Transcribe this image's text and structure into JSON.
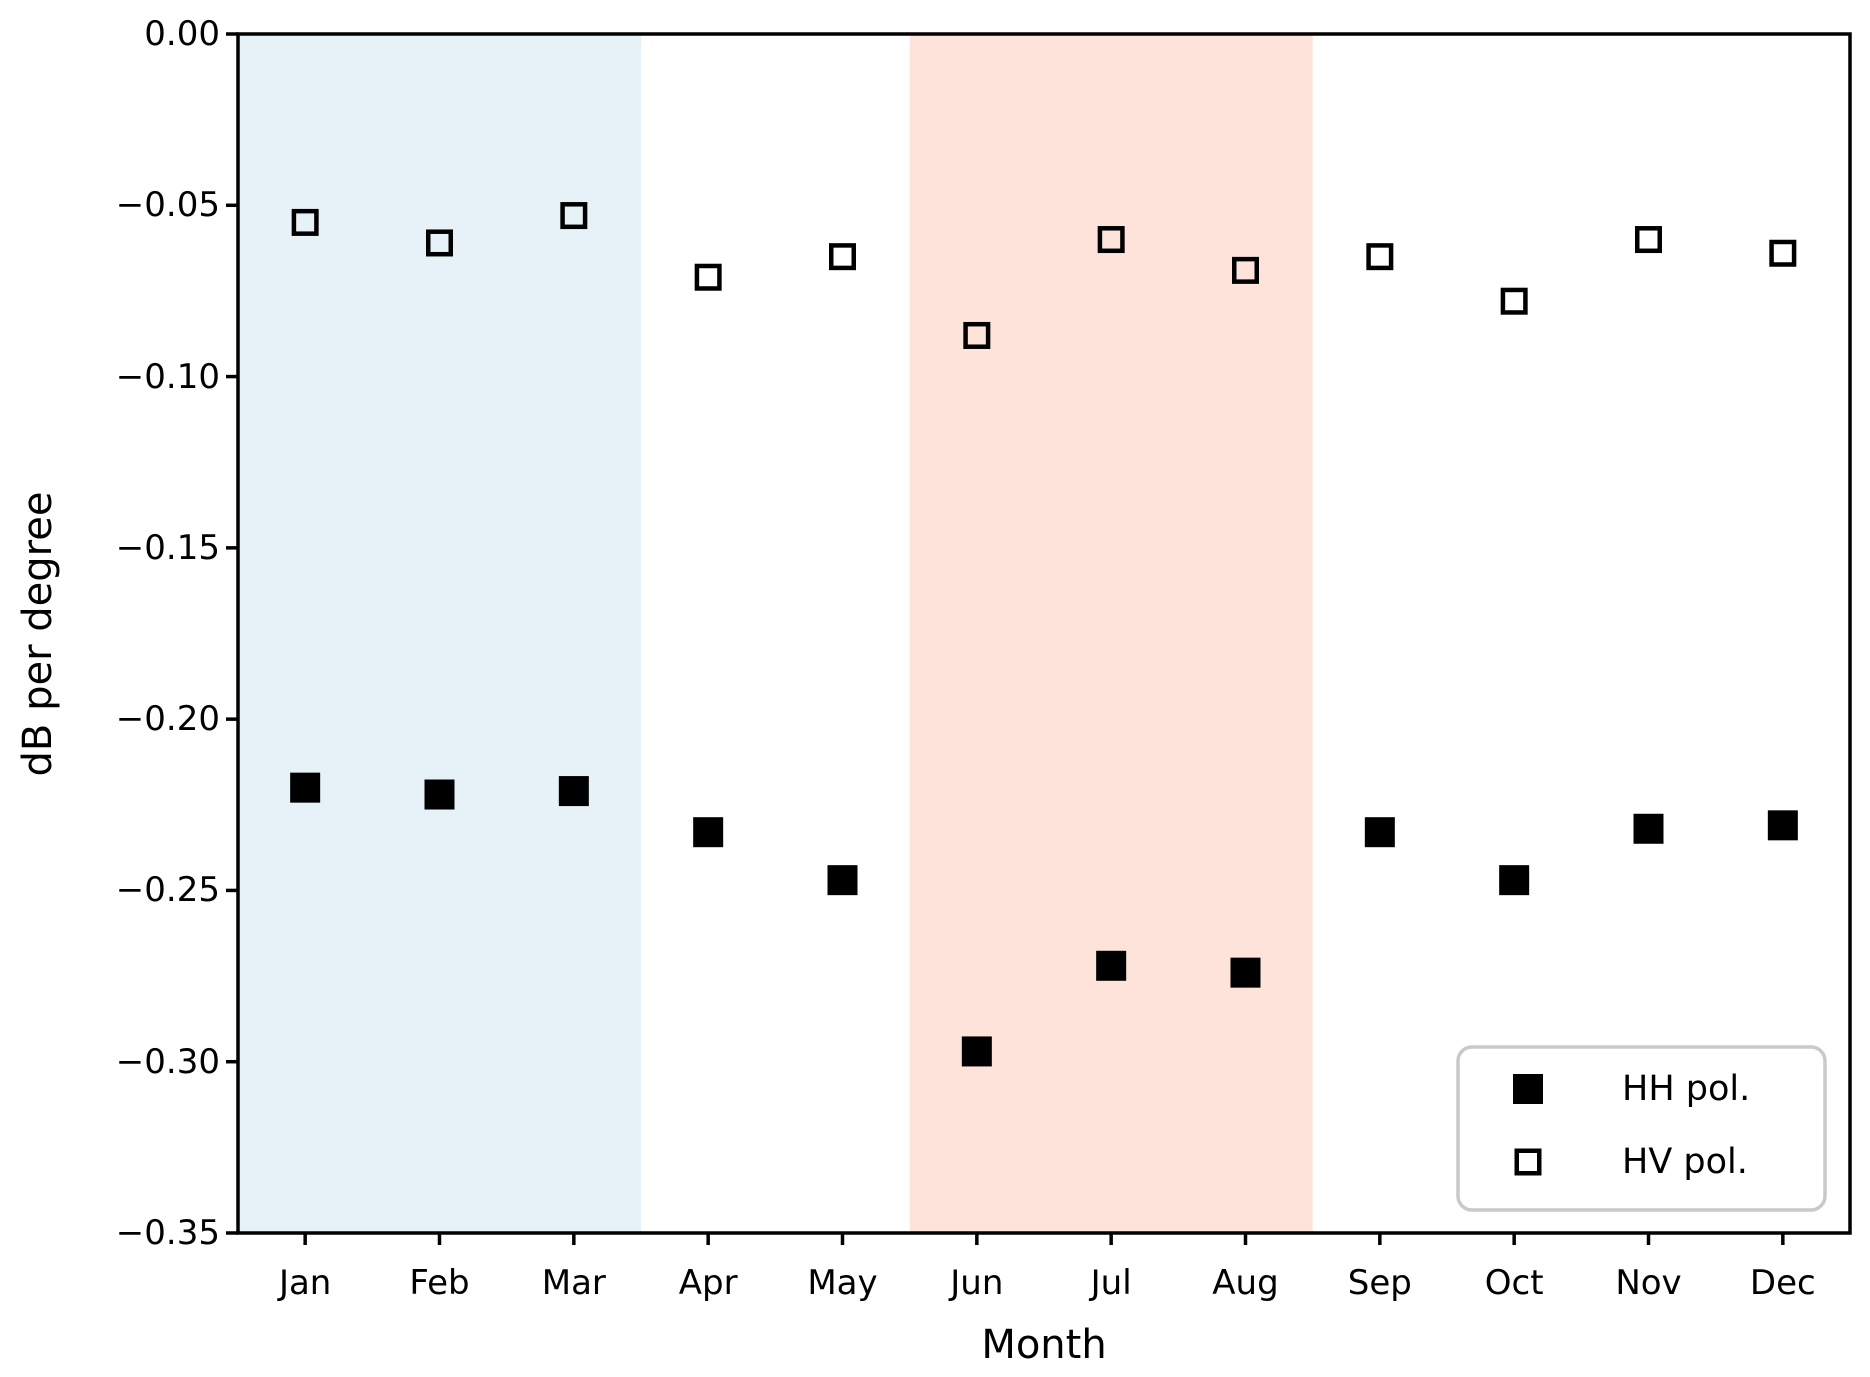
{
  "figure": {
    "ylabel": "dB per degree",
    "xlabel": "Month",
    "legend": [
      {
        "label": "HH pol.",
        "marker": "filled-square"
      },
      {
        "label": "HV pol.",
        "marker": "open-square"
      }
    ],
    "colors": {
      "winter_band": "#e7f2f8",
      "summer_band": "#fde3d9",
      "marker": "#000000",
      "axis": "#000000",
      "legend_border": "#c9c9c9",
      "background": "#ffffff"
    },
    "bands": [
      {
        "name": "winter-shading",
        "from_month_index": 0,
        "to_month_index": 2,
        "color_key": "winter_band"
      },
      {
        "name": "summer-shading",
        "from_month_index": 5,
        "to_month_index": 7,
        "color_key": "summer_band"
      }
    ]
  },
  "chart_data": {
    "type": "scatter",
    "title": "",
    "xlabel": "Month",
    "ylabel": "dB per degree",
    "categories": [
      "Jan",
      "Feb",
      "Mar",
      "Apr",
      "May",
      "Jun",
      "Jul",
      "Aug",
      "Sep",
      "Oct",
      "Nov",
      "Dec"
    ],
    "series": [
      {
        "name": "HH pol.",
        "marker": "filled-square",
        "values": [
          -0.22,
          -0.222,
          -0.221,
          -0.233,
          -0.247,
          -0.297,
          -0.272,
          -0.274,
          -0.233,
          -0.247,
          -0.232,
          -0.231
        ]
      },
      {
        "name": "HV pol.",
        "marker": "open-square",
        "values": [
          -0.055,
          -0.061,
          -0.053,
          -0.071,
          -0.065,
          -0.088,
          -0.06,
          -0.069,
          -0.065,
          -0.078,
          -0.06,
          -0.064
        ]
      }
    ],
    "ylim": [
      -0.35,
      0.0
    ],
    "y_tick_values": [
      0.0,
      -0.05,
      -0.1,
      -0.15,
      -0.2,
      -0.25,
      -0.3,
      -0.35
    ],
    "y_tick_labels": [
      "0.00",
      "−0.05",
      "−0.10",
      "−0.15",
      "−0.20",
      "−0.25",
      "−0.30",
      "−0.35"
    ],
    "grid": false,
    "legend_position": "lower right",
    "shaded_regions": [
      {
        "months": [
          "Jan",
          "Feb",
          "Mar"
        ],
        "color": "#e7f2f8"
      },
      {
        "months": [
          "Jun",
          "Jul",
          "Aug"
        ],
        "color": "#fde3d9"
      }
    ]
  }
}
